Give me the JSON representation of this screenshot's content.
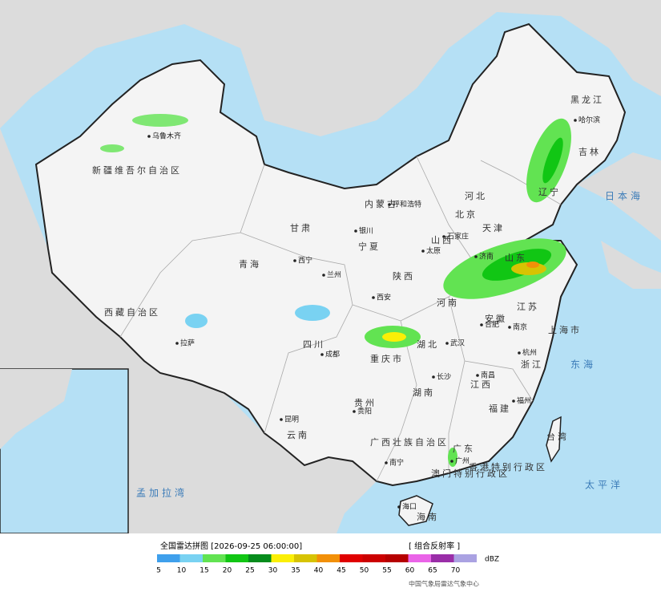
{
  "map": {
    "provinces": [
      "黑龙江",
      "吉林",
      "辽宁",
      "内蒙古",
      "新疆维吾尔自治区",
      "西藏自治区",
      "青海",
      "甘肃",
      "宁夏",
      "陕西",
      "山西",
      "河北",
      "北京",
      "天津",
      "山东",
      "河南",
      "江苏",
      "安徽",
      "湖北",
      "重庆市",
      "四川",
      "贵州",
      "云南",
      "广西壮族自治区",
      "湖南",
      "江西",
      "浙江",
      "福建",
      "广东",
      "海南",
      "台湾",
      "上海市",
      "香港特别行政区",
      "澳门特别行政区"
    ],
    "cities": [
      "哈尔滨",
      "乌鲁木齐",
      "呼和浩特",
      "银川",
      "西宁",
      "兰州",
      "西安",
      "拉萨",
      "成都",
      "贵阳",
      "昆明",
      "南宁",
      "长沙",
      "武汉",
      "南昌",
      "福州",
      "杭州",
      "南京",
      "合肥",
      "济南",
      "石家庄",
      "太原",
      "广州",
      "海口"
    ],
    "seas": [
      "日本海",
      "东海",
      "太平洋",
      "孟加拉湾"
    ]
  },
  "legend": {
    "title": "全国雷达拼图 [2026-09-25 06:00:00]",
    "product": "[ 组合反射率 ]",
    "unit": "dBZ",
    "levels": [
      5,
      10,
      15,
      20,
      25,
      30,
      35,
      40,
      45,
      50,
      55,
      60,
      65,
      70
    ],
    "colors": [
      "#3fa0ec",
      "#79d2f2",
      "#62e352",
      "#11c614",
      "#068c1c",
      "#fbef06",
      "#d7c303",
      "#f29008",
      "#e00000",
      "#cc0000",
      "#b60000",
      "#ea64e8",
      "#9a2ea8",
      "#aaa2e2"
    ]
  },
  "footer": {
    "source": "中国气象局雷达气象中心"
  }
}
